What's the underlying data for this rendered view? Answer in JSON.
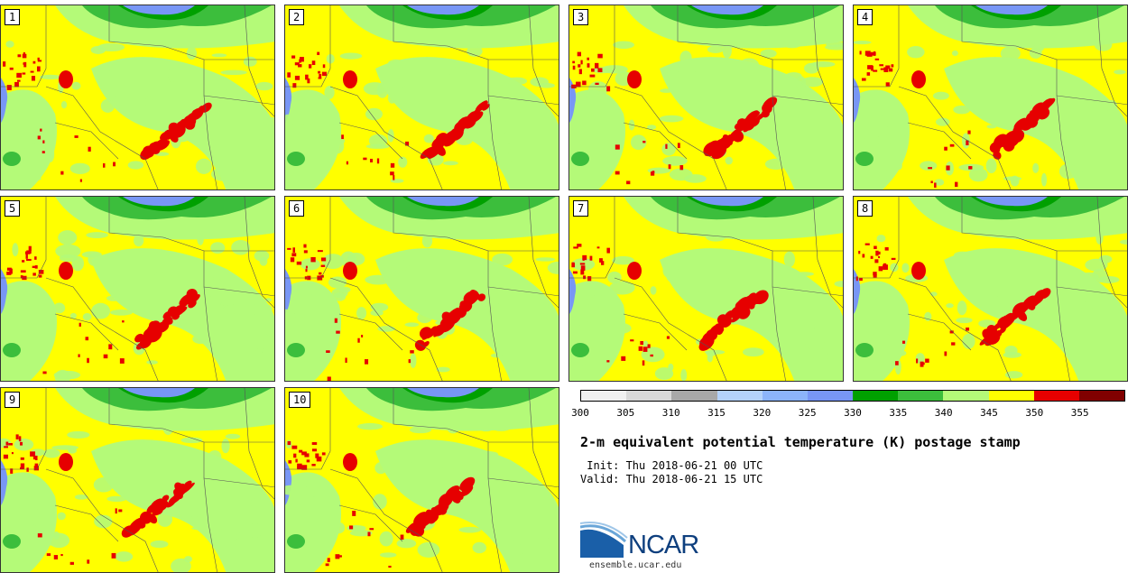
{
  "panels": [
    {
      "label": "1"
    },
    {
      "label": "2"
    },
    {
      "label": "3"
    },
    {
      "label": "4"
    },
    {
      "label": "5"
    },
    {
      "label": "6"
    },
    {
      "label": "7"
    },
    {
      "label": "8"
    },
    {
      "label": "9"
    },
    {
      "label": "10"
    }
  ],
  "colorbar": {
    "colors": [
      "#f0f0f0",
      "#d9d9d9",
      "#a8a8a8",
      "#b4d2fa",
      "#8cb4fa",
      "#7896f5",
      "#00a000",
      "#3cbe3c",
      "#b4fa78",
      "#ffff00",
      "#e60000",
      "#800000"
    ],
    "ticks": [
      "300",
      "305",
      "310",
      "315",
      "320",
      "325",
      "330",
      "335",
      "340",
      "345",
      "350",
      "355"
    ]
  },
  "title": "2-m equivalent potential temperature (K) postage stamp",
  "init": " Init: Thu 2018-06-21 00 UTC",
  "valid": "Valid: Thu 2018-06-21 15 UTC",
  "logo": {
    "text": "NCAR",
    "url": "ensemble.ucar.edu"
  },
  "colors": {
    "yellow": "#ffff00",
    "lightgreen": "#b4fa78",
    "green": "#3cbe3c",
    "darkgreen": "#00a000",
    "blue": "#7896f5",
    "red": "#e60000"
  }
}
